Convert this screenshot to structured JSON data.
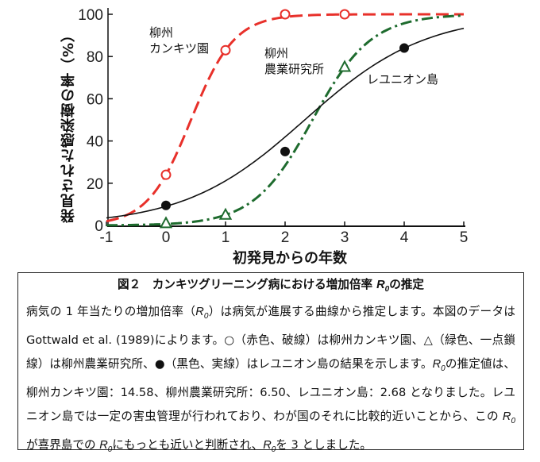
{
  "chart_data": {
    "type": "line",
    "xlabel": "初発見からの年数",
    "ylabel": "発見された感染樹の率（%）",
    "xlim": [
      -1,
      5
    ],
    "ylim": [
      0,
      100
    ],
    "xticks": [
      "-1",
      "0",
      "1",
      "2",
      "3",
      "4",
      "5"
    ],
    "yticks": [
      "0",
      "20",
      "40",
      "60",
      "80",
      "100"
    ],
    "grid": false,
    "series": [
      {
        "name": "柳州カンキツ園",
        "annotation": [
          "柳州",
          "カンキツ園"
        ],
        "color": "#e8302a",
        "line": "dashed",
        "marker": "open-circle",
        "points": [
          [
            0,
            24
          ],
          [
            1,
            83
          ],
          [
            2,
            100
          ],
          [
            3,
            100
          ]
        ],
        "logistic": {
          "rate": 2.74,
          "midpoint": 0.42
        }
      },
      {
        "name": "柳州農業研究所",
        "annotation": [
          "柳州",
          "農業研究所"
        ],
        "color": "#1e6b2e",
        "line": "dash-dot",
        "marker": "open-triangle",
        "points": [
          [
            0,
            1
          ],
          [
            1,
            5
          ],
          [
            3,
            75
          ]
        ],
        "logistic": {
          "rate": 2.02,
          "midpoint": 2.46
        }
      },
      {
        "name": "レユニオン島",
        "annotation": [
          "レユニオン島"
        ],
        "color": "#111111",
        "line": "solid",
        "marker": "filled-circle",
        "points": [
          [
            0,
            9.5
          ],
          [
            2,
            35
          ],
          [
            4,
            84
          ]
        ],
        "logistic": {
          "rate": 0.99,
          "midpoint": 2.33
        }
      }
    ]
  },
  "caption": {
    "title_pre": "図２　カンキツグリーニング病における増加倍率 ",
    "title_post": "の推定",
    "r": "R",
    "r_sub": "0",
    "segments": [
      "病気の 1 年当たりの増加倍率（",
      "）は病気が進展する曲線から推定します。本図のデータは Gottwald et al. (1989)によります。○（赤色、破線）は柳州カンキツ園、△（緑色、一点鎖線）は柳州農業研究所、●（黒色、実線）はレユニオン島の結果を示します。",
      "の推定値は、柳州カンキツ園：14.58、柳州農業研究所：6.50、レユニオン島：2.68 となりました。レユニオン島では一定の害虫管理が行われており、わが国のそれに比較的近いことから、この ",
      "が喜界島での ",
      "にもっとも近いと判断され、",
      "を 3 としました。"
    ]
  }
}
